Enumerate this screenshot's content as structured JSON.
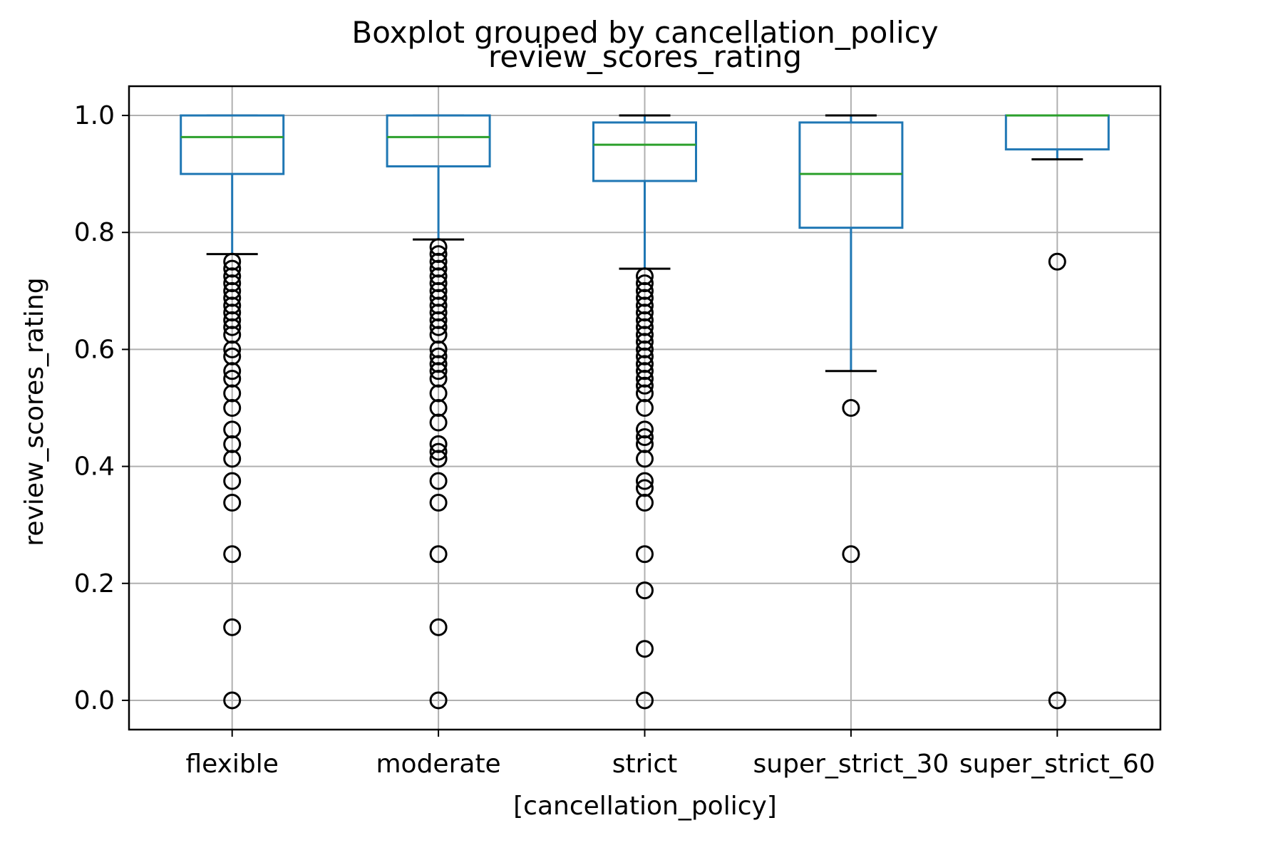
{
  "chart_data": {
    "type": "boxplot",
    "suptitle": "Boxplot grouped by cancellation_policy",
    "title": "review_scores_rating",
    "xlabel": "[cancellation_policy]",
    "ylabel": "review_scores_rating",
    "ylim": [
      -0.05,
      1.05
    ],
    "yticks": [
      0.0,
      0.2,
      0.4,
      0.6,
      0.8,
      1.0
    ],
    "ytick_labels": [
      "0.0",
      "0.2",
      "0.4",
      "0.6",
      "0.8",
      "1.0"
    ],
    "grid": true,
    "colors": {
      "box": "#1f77b4",
      "median": "#2ca02c",
      "cap": "#000000",
      "flier": "#000000",
      "grid": "#b0b0b0"
    },
    "groups": [
      {
        "label": "flexible",
        "whisker_low": 0.763,
        "q1": 0.9,
        "median": 0.963,
        "q3": 1.0,
        "whisker_high": 1.0,
        "fliers": [
          0.75,
          0.738,
          0.725,
          0.713,
          0.7,
          0.688,
          0.675,
          0.663,
          0.65,
          0.638,
          0.625,
          0.6,
          0.588,
          0.563,
          0.55,
          0.525,
          0.5,
          0.463,
          0.438,
          0.413,
          0.375,
          0.338,
          0.25,
          0.125,
          0.0
        ]
      },
      {
        "label": "moderate",
        "whisker_low": 0.788,
        "q1": 0.913,
        "median": 0.963,
        "q3": 1.0,
        "whisker_high": 1.0,
        "fliers": [
          0.775,
          0.763,
          0.75,
          0.738,
          0.725,
          0.713,
          0.7,
          0.688,
          0.675,
          0.663,
          0.65,
          0.638,
          0.625,
          0.6,
          0.588,
          0.575,
          0.563,
          0.55,
          0.525,
          0.5,
          0.475,
          0.438,
          0.425,
          0.413,
          0.375,
          0.338,
          0.25,
          0.125,
          0.0
        ]
      },
      {
        "label": "strict",
        "whisker_low": 0.738,
        "q1": 0.888,
        "median": 0.95,
        "q3": 0.988,
        "whisker_high": 1.0,
        "fliers": [
          0.725,
          0.713,
          0.7,
          0.688,
          0.675,
          0.663,
          0.65,
          0.638,
          0.625,
          0.613,
          0.6,
          0.588,
          0.575,
          0.563,
          0.55,
          0.538,
          0.525,
          0.5,
          0.463,
          0.45,
          0.438,
          0.413,
          0.375,
          0.363,
          0.338,
          0.25,
          0.188,
          0.088,
          0.0
        ]
      },
      {
        "label": "super_strict_30",
        "whisker_low": 0.563,
        "q1": 0.808,
        "median": 0.9,
        "q3": 0.988,
        "whisker_high": 1.0,
        "fliers": [
          0.5,
          0.25
        ]
      },
      {
        "label": "super_strict_60",
        "whisker_low": 0.925,
        "q1": 0.942,
        "median": 1.0,
        "q3": 1.0,
        "whisker_high": 1.0,
        "fliers": [
          0.75,
          0.0
        ]
      }
    ]
  }
}
